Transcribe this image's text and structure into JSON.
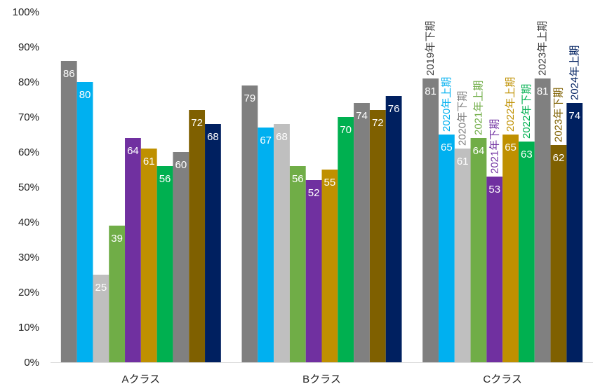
{
  "chart_data": {
    "type": "bar",
    "categories": [
      "Aクラス",
      "Bクラス",
      "Cクラス"
    ],
    "series": [
      {
        "name": "2019年下期",
        "color": "#7f7f7f",
        "label_color": "#ffffff",
        "values": [
          86,
          79,
          81
        ]
      },
      {
        "name": "2020年上期",
        "color": "#00b0f0",
        "label_color": "#ffffff",
        "values": [
          80,
          67,
          65
        ]
      },
      {
        "name": "2020年下期",
        "color": "#bfbfbf",
        "label_color": "#ffffff",
        "values": [
          25,
          68,
          61
        ]
      },
      {
        "name": "2021年上期",
        "color": "#70ad47",
        "label_color": "#ffffff",
        "values": [
          39,
          56,
          64
        ]
      },
      {
        "name": "2021年下期",
        "color": "#7030a0",
        "label_color": "#ffffff",
        "values": [
          64,
          52,
          53
        ]
      },
      {
        "name": "2022年上期",
        "color": "#bf9000",
        "label_color": "#ffffff",
        "values": [
          61,
          55,
          65
        ]
      },
      {
        "name": "2022年下期",
        "color": "#00b050",
        "label_color": "#ffffff",
        "values": [
          56,
          70,
          63
        ]
      },
      {
        "name": "2023年上期",
        "color": "#808080",
        "label_color": "#ffffff",
        "values": [
          60,
          74,
          81
        ]
      },
      {
        "name": "2023年下期",
        "color": "#7f6000",
        "label_color": "#ffffff",
        "values": [
          72,
          72,
          62
        ]
      },
      {
        "name": "2024年上期",
        "color": "#002060",
        "label_color": "#ffffff",
        "values": [
          68,
          76,
          74
        ]
      }
    ],
    "legend_colors": [
      "#404040",
      "#00b0f0",
      "#808080",
      "#70ad47",
      "#7030a0",
      "#bf9000",
      "#00b050",
      "#404040",
      "#7f6000",
      "#002060"
    ],
    "y_ticks": [
      "0%",
      "10%",
      "20%",
      "30%",
      "40%",
      "50%",
      "60%",
      "70%",
      "80%",
      "90%",
      "100%"
    ],
    "ylim": [
      0,
      100
    ],
    "legend_placement": "vertical labels above the Cクラス bars",
    "grid": false
  }
}
